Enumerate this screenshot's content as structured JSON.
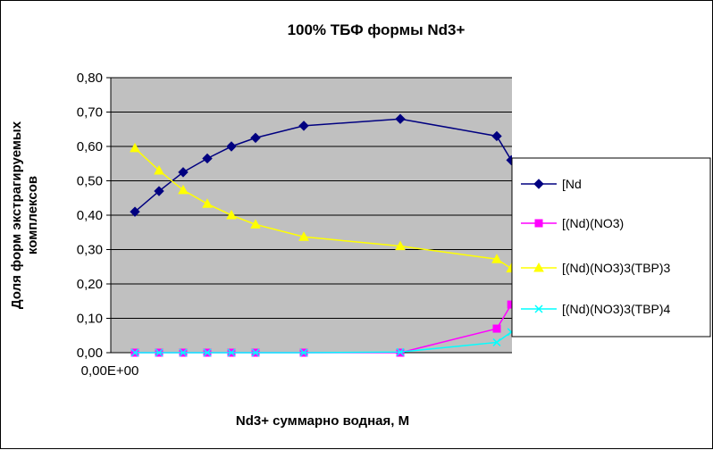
{
  "chart_data": {
    "type": "line",
    "title": "100%  ТБФ  формы Nd3+",
    "xlabel": "Nd3+ суммарно   водная, М",
    "ylabel_line1": "Доля форм экстрагируемых",
    "ylabel_line2": "комплексов",
    "ylim": [
      0,
      0.8
    ],
    "y_ticks": [
      "0,00",
      "0,10",
      "0,20",
      "0,30",
      "0,40",
      "0,50",
      "0,60",
      "0,70",
      "0,80"
    ],
    "x_tick_labels": [
      "0,00E+00"
    ],
    "grid": "horizontal",
    "plot_background": "#c0c0c0",
    "legend_position": "right",
    "series": [
      {
        "name": "[Nd",
        "color": "#000080",
        "marker": "diamond",
        "points": [
          [
            0.05,
            0.41
          ],
          [
            0.1,
            0.47
          ],
          [
            0.15,
            0.525
          ],
          [
            0.2,
            0.565
          ],
          [
            0.25,
            0.6
          ],
          [
            0.3,
            0.625
          ],
          [
            0.4,
            0.66
          ],
          [
            0.6,
            0.68
          ],
          [
            0.8,
            0.63
          ],
          [
            0.83,
            0.56
          ]
        ]
      },
      {
        "name": "[(Nd)(NO3)",
        "color": "#ff00ff",
        "marker": "square",
        "points": [
          [
            0.05,
            0.0
          ],
          [
            0.1,
            0.0
          ],
          [
            0.15,
            0.0
          ],
          [
            0.2,
            0.0
          ],
          [
            0.25,
            0.0
          ],
          [
            0.3,
            0.0
          ],
          [
            0.4,
            0.0
          ],
          [
            0.6,
            0.0
          ],
          [
            0.8,
            0.07
          ],
          [
            0.83,
            0.14
          ]
        ]
      },
      {
        "name": "[(Nd)(NO3)3(TBP)3",
        "color": "#ffff00",
        "marker": "triangle",
        "points": [
          [
            0.05,
            0.595
          ],
          [
            0.1,
            0.53
          ],
          [
            0.15,
            0.473
          ],
          [
            0.2,
            0.433
          ],
          [
            0.25,
            0.4
          ],
          [
            0.3,
            0.373
          ],
          [
            0.4,
            0.337
          ],
          [
            0.6,
            0.31
          ],
          [
            0.8,
            0.272
          ],
          [
            0.83,
            0.245
          ]
        ]
      },
      {
        "name": "[(Nd)(NO3)3(TBP)4",
        "color": "#00ffff",
        "marker": "x",
        "points": [
          [
            0.05,
            0.0
          ],
          [
            0.1,
            0.0
          ],
          [
            0.15,
            0.0
          ],
          [
            0.2,
            0.0
          ],
          [
            0.25,
            0.0
          ],
          [
            0.3,
            0.0
          ],
          [
            0.4,
            0.0
          ],
          [
            0.6,
            0.002
          ],
          [
            0.8,
            0.03
          ],
          [
            0.83,
            0.06
          ]
        ]
      }
    ]
  }
}
